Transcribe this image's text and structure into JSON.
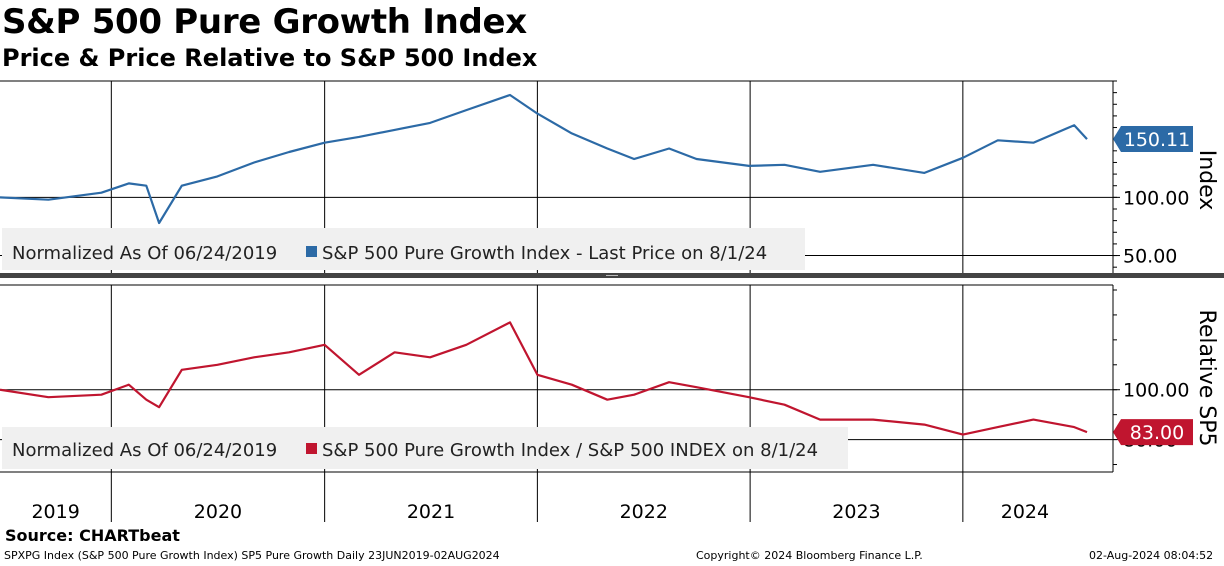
{
  "header": {
    "title": "S&P 500 Pure Growth Index",
    "subtitle": "Price & Price Relative to S&P 500 Index"
  },
  "footer": {
    "source": "Source: CHARTbeat",
    "left": "SPXPG Index (S&P 500 Pure Growth Index) SP5 Pure Growth  Daily 23JUN2019-02AUG2024",
    "center": "Copyright© 2024 Bloomberg Finance L.P.",
    "right": "02-Aug-2024 08:04:52"
  },
  "colors": {
    "price": "#2c6aa6",
    "relative": "#c0152f",
    "panel_bg": "#f0f0f0"
  },
  "chart_data": [
    {
      "type": "line",
      "panel": "top",
      "ylabel": "Index",
      "ytick_labels": [
        "100.00",
        "50.00"
      ],
      "yticks": [
        100,
        50
      ],
      "ylim": [
        35,
        200
      ],
      "legend_note": "Normalized As Of 06/24/2019",
      "legend_series": "S&P 500 Pure Growth Index - Last Price on 8/1/24",
      "last_value_label": "150.11",
      "last_value": 150.11,
      "grid": true,
      "x": [
        "2019-06-24",
        "2019-09-15",
        "2019-12-15",
        "2020-01-31",
        "2020-03-01",
        "2020-03-23",
        "2020-05-01",
        "2020-07-01",
        "2020-09-02",
        "2020-11-01",
        "2021-01-01",
        "2021-03-01",
        "2021-05-01",
        "2021-07-01",
        "2021-09-01",
        "2021-11-15",
        "2022-01-01",
        "2022-03-01",
        "2022-05-01",
        "2022-06-16",
        "2022-08-15",
        "2022-10-01",
        "2022-12-30",
        "2023-03-01",
        "2023-05-01",
        "2023-07-31",
        "2023-10-27",
        "2024-01-01",
        "2024-03-01",
        "2024-05-01",
        "2024-07-10",
        "2024-08-01"
      ],
      "y": [
        100,
        98,
        104,
        112,
        110,
        78,
        110,
        118,
        130,
        139,
        147,
        152,
        158,
        164,
        175,
        188,
        172,
        155,
        142,
        133,
        142,
        133,
        127,
        128,
        122,
        128,
        121,
        134,
        149,
        147,
        162,
        150.11
      ]
    },
    {
      "type": "line",
      "panel": "bottom",
      "ylabel": "Relative SP5",
      "ytick_labels": [
        "100.00",
        "80.00"
      ],
      "yticks": [
        100,
        80
      ],
      "ylim": [
        67,
        142
      ],
      "legend_note": "Normalized As Of 06/24/2019",
      "legend_series": "S&P 500 Pure Growth Index / S&P 500 INDEX on 8/1/24",
      "last_value_label": "83.00",
      "last_value": 83.0,
      "grid": true,
      "x": [
        "2019-06-24",
        "2019-09-15",
        "2019-12-15",
        "2020-01-31",
        "2020-03-01",
        "2020-03-23",
        "2020-05-01",
        "2020-07-01",
        "2020-09-02",
        "2020-11-01",
        "2021-01-01",
        "2021-03-01",
        "2021-05-01",
        "2021-07-01",
        "2021-09-01",
        "2021-11-15",
        "2022-01-01",
        "2022-03-01",
        "2022-05-01",
        "2022-06-16",
        "2022-08-15",
        "2022-10-01",
        "2022-12-30",
        "2023-03-01",
        "2023-05-01",
        "2023-07-31",
        "2023-10-27",
        "2024-01-01",
        "2024-03-01",
        "2024-05-01",
        "2024-07-10",
        "2024-08-01"
      ],
      "y": [
        100,
        97,
        98,
        102,
        96,
        93,
        108,
        110,
        113,
        115,
        118,
        106,
        115,
        113,
        118,
        127,
        106,
        102,
        96,
        98,
        103,
        101,
        97,
        94,
        88,
        88,
        86,
        82,
        85,
        88,
        85,
        83.0
      ]
    }
  ],
  "x_axis": {
    "labels": [
      "2019",
      "2020",
      "2021",
      "2022",
      "2023",
      "2024"
    ],
    "year_boundaries": [
      "2020-01-01",
      "2021-01-01",
      "2022-01-01",
      "2023-01-01",
      "2024-01-01"
    ],
    "domain": [
      "2019-06-24",
      "2024-08-01"
    ]
  }
}
